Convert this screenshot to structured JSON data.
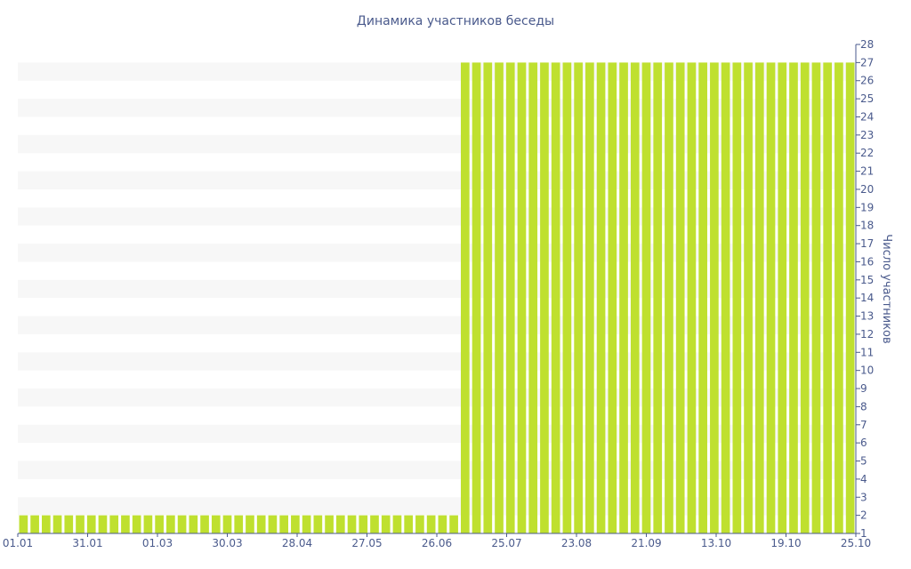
{
  "chart_data": {
    "type": "bar",
    "title": "Динамика участников беседы",
    "xlabel": "",
    "ylabel": "Число участников",
    "ylim": [
      1,
      28
    ],
    "grid": "alternating horizontal bands",
    "y_axis_position": "right",
    "bar_color": "#bfe02f",
    "band_color": "#f7f7f7",
    "text_color": "#4a5a8c",
    "x_tick_labels": [
      "01.01",
      "31.01",
      "01.03",
      "30.03",
      "28.04",
      "27.05",
      "26.06",
      "25.07",
      "23.08",
      "21.09",
      "13.10",
      "19.10",
      "25.10"
    ],
    "series": [
      {
        "values": [
          2,
          2,
          2,
          2,
          2,
          2,
          2,
          2,
          2,
          2,
          2,
          2,
          2,
          2,
          2,
          2,
          2,
          2,
          2,
          2,
          2,
          2,
          2,
          2,
          2,
          2,
          2,
          2,
          2,
          2,
          2,
          2,
          2,
          2,
          2,
          2,
          2,
          2,
          2,
          27,
          27,
          27,
          27,
          27,
          27,
          27,
          27,
          27,
          27,
          27,
          27,
          27,
          27,
          27,
          27,
          27,
          27,
          27,
          27,
          27,
          27,
          27,
          27,
          27,
          27,
          27,
          27,
          27,
          27,
          27,
          27,
          27,
          27,
          27
        ]
      }
    ]
  }
}
